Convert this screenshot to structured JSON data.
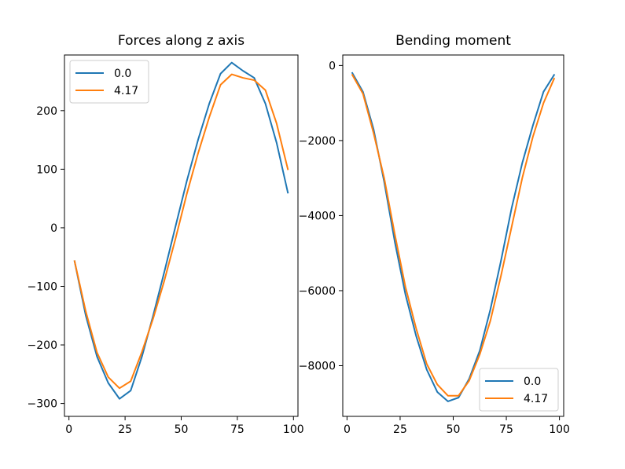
{
  "chart_data": [
    {
      "type": "line",
      "title": "Forces along z axis",
      "xlabel": "",
      "ylabel": "",
      "xlim": [
        -2,
        102
      ],
      "ylim": [
        -322,
        295
      ],
      "xticks": [
        0,
        25,
        50,
        75,
        100
      ],
      "xtick_labels": [
        "0",
        "25",
        "50",
        "75",
        "100"
      ],
      "yticks": [
        -300,
        -200,
        -100,
        0,
        100,
        200
      ],
      "ytick_labels": [
        "−300",
        "−200",
        "−100",
        "0",
        "100",
        "200"
      ],
      "legend": {
        "placement": "upper-left"
      },
      "grid": false,
      "series": [
        {
          "name": "0.0",
          "color": "#1f77b4",
          "x": [
            2.5,
            7.5,
            12.5,
            17.5,
            22.5,
            27.5,
            32.5,
            37.5,
            42.5,
            47.5,
            52.5,
            57.5,
            62.5,
            67.5,
            72.5,
            77.5,
            82.5,
            87.5,
            92.5,
            97.5
          ],
          "y": [
            -57,
            -150,
            -220,
            -265,
            -292,
            -278,
            -220,
            -150,
            -75,
            3,
            80,
            150,
            212,
            263,
            282,
            268,
            256,
            212,
            145,
            60
          ]
        },
        {
          "name": "4.17",
          "color": "#ff7f0e",
          "x": [
            2.5,
            7.5,
            12.5,
            17.5,
            22.5,
            27.5,
            32.5,
            37.5,
            42.5,
            47.5,
            52.5,
            57.5,
            62.5,
            67.5,
            72.5,
            77.5,
            82.5,
            87.5,
            92.5,
            97.5
          ],
          "y": [
            -57,
            -143,
            -213,
            -255,
            -274,
            -262,
            -212,
            -155,
            -90,
            -18,
            58,
            127,
            189,
            244,
            262,
            256,
            252,
            235,
            178,
            100
          ]
        }
      ]
    },
    {
      "type": "line",
      "title": "Bending moment",
      "xlabel": "",
      "ylabel": "",
      "xlim": [
        -2,
        102
      ],
      "ylim": [
        -9350,
        280
      ],
      "xticks": [
        0,
        25,
        50,
        75,
        100
      ],
      "xtick_labels": [
        "0",
        "25",
        "50",
        "75",
        "100"
      ],
      "yticks": [
        -8000,
        -6000,
        -4000,
        -2000,
        0
      ],
      "ytick_labels": [
        "−8000",
        "−6000",
        "−4000",
        "−2000",
        "0"
      ],
      "legend": {
        "placement": "lower-right"
      },
      "grid": false,
      "series": [
        {
          "name": "0.0",
          "color": "#1f77b4",
          "x": [
            2.5,
            7.5,
            12.5,
            17.5,
            22.5,
            27.5,
            32.5,
            37.5,
            42.5,
            47.5,
            52.5,
            57.5,
            62.5,
            67.5,
            72.5,
            77.5,
            82.5,
            87.5,
            92.5,
            97.5
          ],
          "y": [
            -200,
            -700,
            -1700,
            -3100,
            -4700,
            -6100,
            -7200,
            -8100,
            -8700,
            -8950,
            -8850,
            -8350,
            -7600,
            -6500,
            -5200,
            -3800,
            -2600,
            -1600,
            -700,
            -250
          ]
        },
        {
          "name": "4.17",
          "color": "#ff7f0e",
          "x": [
            2.5,
            7.5,
            12.5,
            17.5,
            22.5,
            27.5,
            32.5,
            37.5,
            42.5,
            47.5,
            52.5,
            57.5,
            62.5,
            67.5,
            72.5,
            77.5,
            82.5,
            87.5,
            92.5,
            97.5
          ],
          "y": [
            -250,
            -750,
            -1800,
            -3000,
            -4500,
            -5900,
            -7000,
            -7950,
            -8500,
            -8800,
            -8800,
            -8400,
            -7700,
            -6800,
            -5600,
            -4300,
            -3000,
            -1900,
            -1000,
            -350
          ]
        }
      ]
    }
  ]
}
